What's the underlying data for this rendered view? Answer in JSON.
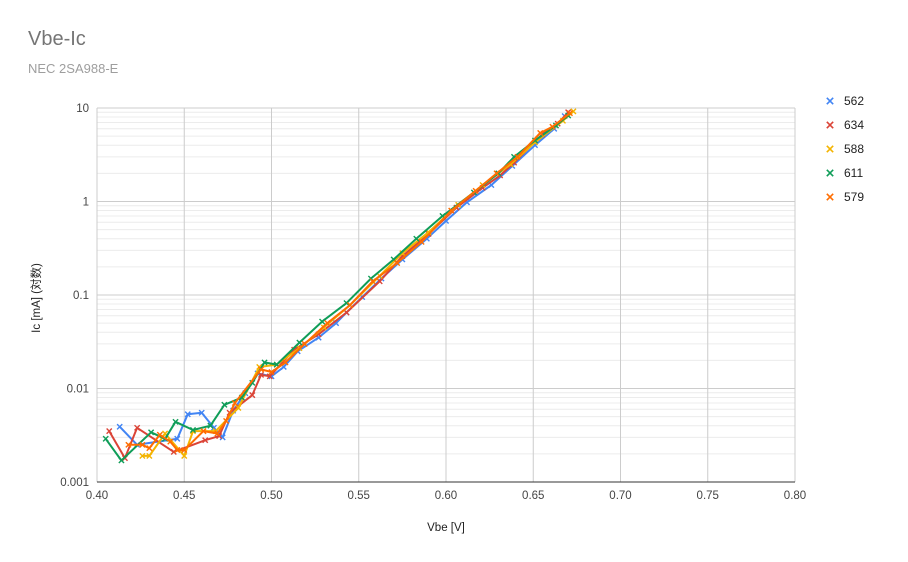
{
  "chart_data": {
    "type": "line",
    "title": "Vbe-Ic",
    "subtitle": "NEC 2SA988-E",
    "xlabel": "Vbe [V]",
    "ylabel": "Ic [mA] (対数)",
    "xlim": [
      0.4,
      0.8
    ],
    "ylim": [
      0.001,
      10
    ],
    "yscale": "log",
    "x_ticks": [
      "0.40",
      "0.45",
      "0.50",
      "0.55",
      "0.60",
      "0.65",
      "0.70",
      "0.75",
      "0.80"
    ],
    "y_ticks": [
      "0.001",
      "0.01",
      "0.1",
      "1",
      "10"
    ],
    "grid": true,
    "legend_position": "right",
    "series": [
      {
        "name": "562",
        "color": "#4285f4",
        "points": [
          [
            0.413,
            0.0039
          ],
          [
            0.423,
            0.0025
          ],
          [
            0.446,
            0.0029
          ],
          [
            0.452,
            0.0053
          ],
          [
            0.46,
            0.0055
          ],
          [
            0.467,
            0.0038
          ],
          [
            0.472,
            0.003
          ],
          [
            0.478,
            0.0058
          ],
          [
            0.485,
            0.0089
          ],
          [
            0.492,
            0.0145
          ],
          [
            0.5,
            0.0135
          ],
          [
            0.507,
            0.017
          ],
          [
            0.515,
            0.025
          ],
          [
            0.527,
            0.035
          ],
          [
            0.537,
            0.05
          ],
          [
            0.543,
            0.065
          ],
          [
            0.552,
            0.095
          ],
          [
            0.563,
            0.15
          ],
          [
            0.575,
            0.24
          ],
          [
            0.589,
            0.4
          ],
          [
            0.6,
            0.62
          ],
          [
            0.612,
            0.98
          ],
          [
            0.626,
            1.5
          ],
          [
            0.638,
            2.4
          ],
          [
            0.651,
            4.0
          ],
          [
            0.662,
            6.0
          ],
          [
            0.668,
            8.2
          ]
        ]
      },
      {
        "name": "634",
        "color": "#db4437",
        "points": [
          [
            0.407,
            0.0035
          ],
          [
            0.416,
            0.0018
          ],
          [
            0.423,
            0.0038
          ],
          [
            0.444,
            0.0021
          ],
          [
            0.462,
            0.0028
          ],
          [
            0.47,
            0.0031
          ],
          [
            0.476,
            0.0055
          ],
          [
            0.489,
            0.0085
          ],
          [
            0.494,
            0.014
          ],
          [
            0.499,
            0.0135
          ],
          [
            0.513,
            0.026
          ],
          [
            0.527,
            0.038
          ],
          [
            0.543,
            0.065
          ],
          [
            0.562,
            0.14
          ],
          [
            0.575,
            0.26
          ],
          [
            0.59,
            0.45
          ],
          [
            0.606,
            0.86
          ],
          [
            0.621,
            1.4
          ],
          [
            0.631,
            1.9
          ],
          [
            0.639,
            2.6
          ],
          [
            0.655,
            5.2
          ],
          [
            0.664,
            6.8
          ],
          [
            0.67,
            9.0
          ]
        ]
      },
      {
        "name": "588",
        "color": "#f4b400",
        "points": [
          [
            0.426,
            0.0019
          ],
          [
            0.43,
            0.0019
          ],
          [
            0.439,
            0.0033
          ],
          [
            0.45,
            0.0019
          ],
          [
            0.455,
            0.0035
          ],
          [
            0.461,
            0.0035
          ],
          [
            0.468,
            0.0035
          ],
          [
            0.481,
            0.0062
          ],
          [
            0.493,
            0.017
          ],
          [
            0.503,
            0.018
          ],
          [
            0.516,
            0.027
          ],
          [
            0.53,
            0.045
          ],
          [
            0.545,
            0.078
          ],
          [
            0.562,
            0.16
          ],
          [
            0.575,
            0.28
          ],
          [
            0.59,
            0.47
          ],
          [
            0.607,
            0.92
          ],
          [
            0.621,
            1.5
          ],
          [
            0.637,
            2.5
          ],
          [
            0.651,
            4.3
          ],
          [
            0.667,
            7.3
          ],
          [
            0.673,
            9.2
          ]
        ]
      },
      {
        "name": "611",
        "color": "#0f9d58",
        "points": [
          [
            0.405,
            0.0029
          ],
          [
            0.414,
            0.0017
          ],
          [
            0.431,
            0.0034
          ],
          [
            0.439,
            0.0029
          ],
          [
            0.445,
            0.0044
          ],
          [
            0.455,
            0.0036
          ],
          [
            0.465,
            0.004
          ],
          [
            0.473,
            0.0067
          ],
          [
            0.483,
            0.008
          ],
          [
            0.489,
            0.0115
          ],
          [
            0.496,
            0.019
          ],
          [
            0.503,
            0.018
          ],
          [
            0.516,
            0.031
          ],
          [
            0.529,
            0.052
          ],
          [
            0.543,
            0.082
          ],
          [
            0.557,
            0.15
          ],
          [
            0.57,
            0.24
          ],
          [
            0.583,
            0.4
          ],
          [
            0.598,
            0.7
          ],
          [
            0.616,
            1.25
          ],
          [
            0.63,
            2.0
          ],
          [
            0.639,
            3.0
          ],
          [
            0.651,
            4.5
          ],
          [
            0.663,
            6.5
          ],
          [
            0.67,
            8.3
          ]
        ]
      },
      {
        "name": "579",
        "color": "#ff6d01",
        "points": [
          [
            0.418,
            0.0025
          ],
          [
            0.426,
            0.0025
          ],
          [
            0.43,
            0.0023
          ],
          [
            0.436,
            0.0032
          ],
          [
            0.442,
            0.0027
          ],
          [
            0.446,
            0.0022
          ],
          [
            0.45,
            0.0022
          ],
          [
            0.461,
            0.0035
          ],
          [
            0.469,
            0.0033
          ],
          [
            0.474,
            0.0045
          ],
          [
            0.479,
            0.007
          ],
          [
            0.494,
            0.016
          ],
          [
            0.5,
            0.015
          ],
          [
            0.508,
            0.019
          ],
          [
            0.519,
            0.03
          ],
          [
            0.532,
            0.05
          ],
          [
            0.545,
            0.078
          ],
          [
            0.558,
            0.14
          ],
          [
            0.572,
            0.22
          ],
          [
            0.586,
            0.37
          ],
          [
            0.603,
            0.8
          ],
          [
            0.617,
            1.3
          ],
          [
            0.629,
            2.0
          ],
          [
            0.641,
            3.0
          ],
          [
            0.654,
            5.4
          ],
          [
            0.661,
            6.3
          ],
          [
            0.671,
            8.8
          ]
        ]
      }
    ]
  }
}
